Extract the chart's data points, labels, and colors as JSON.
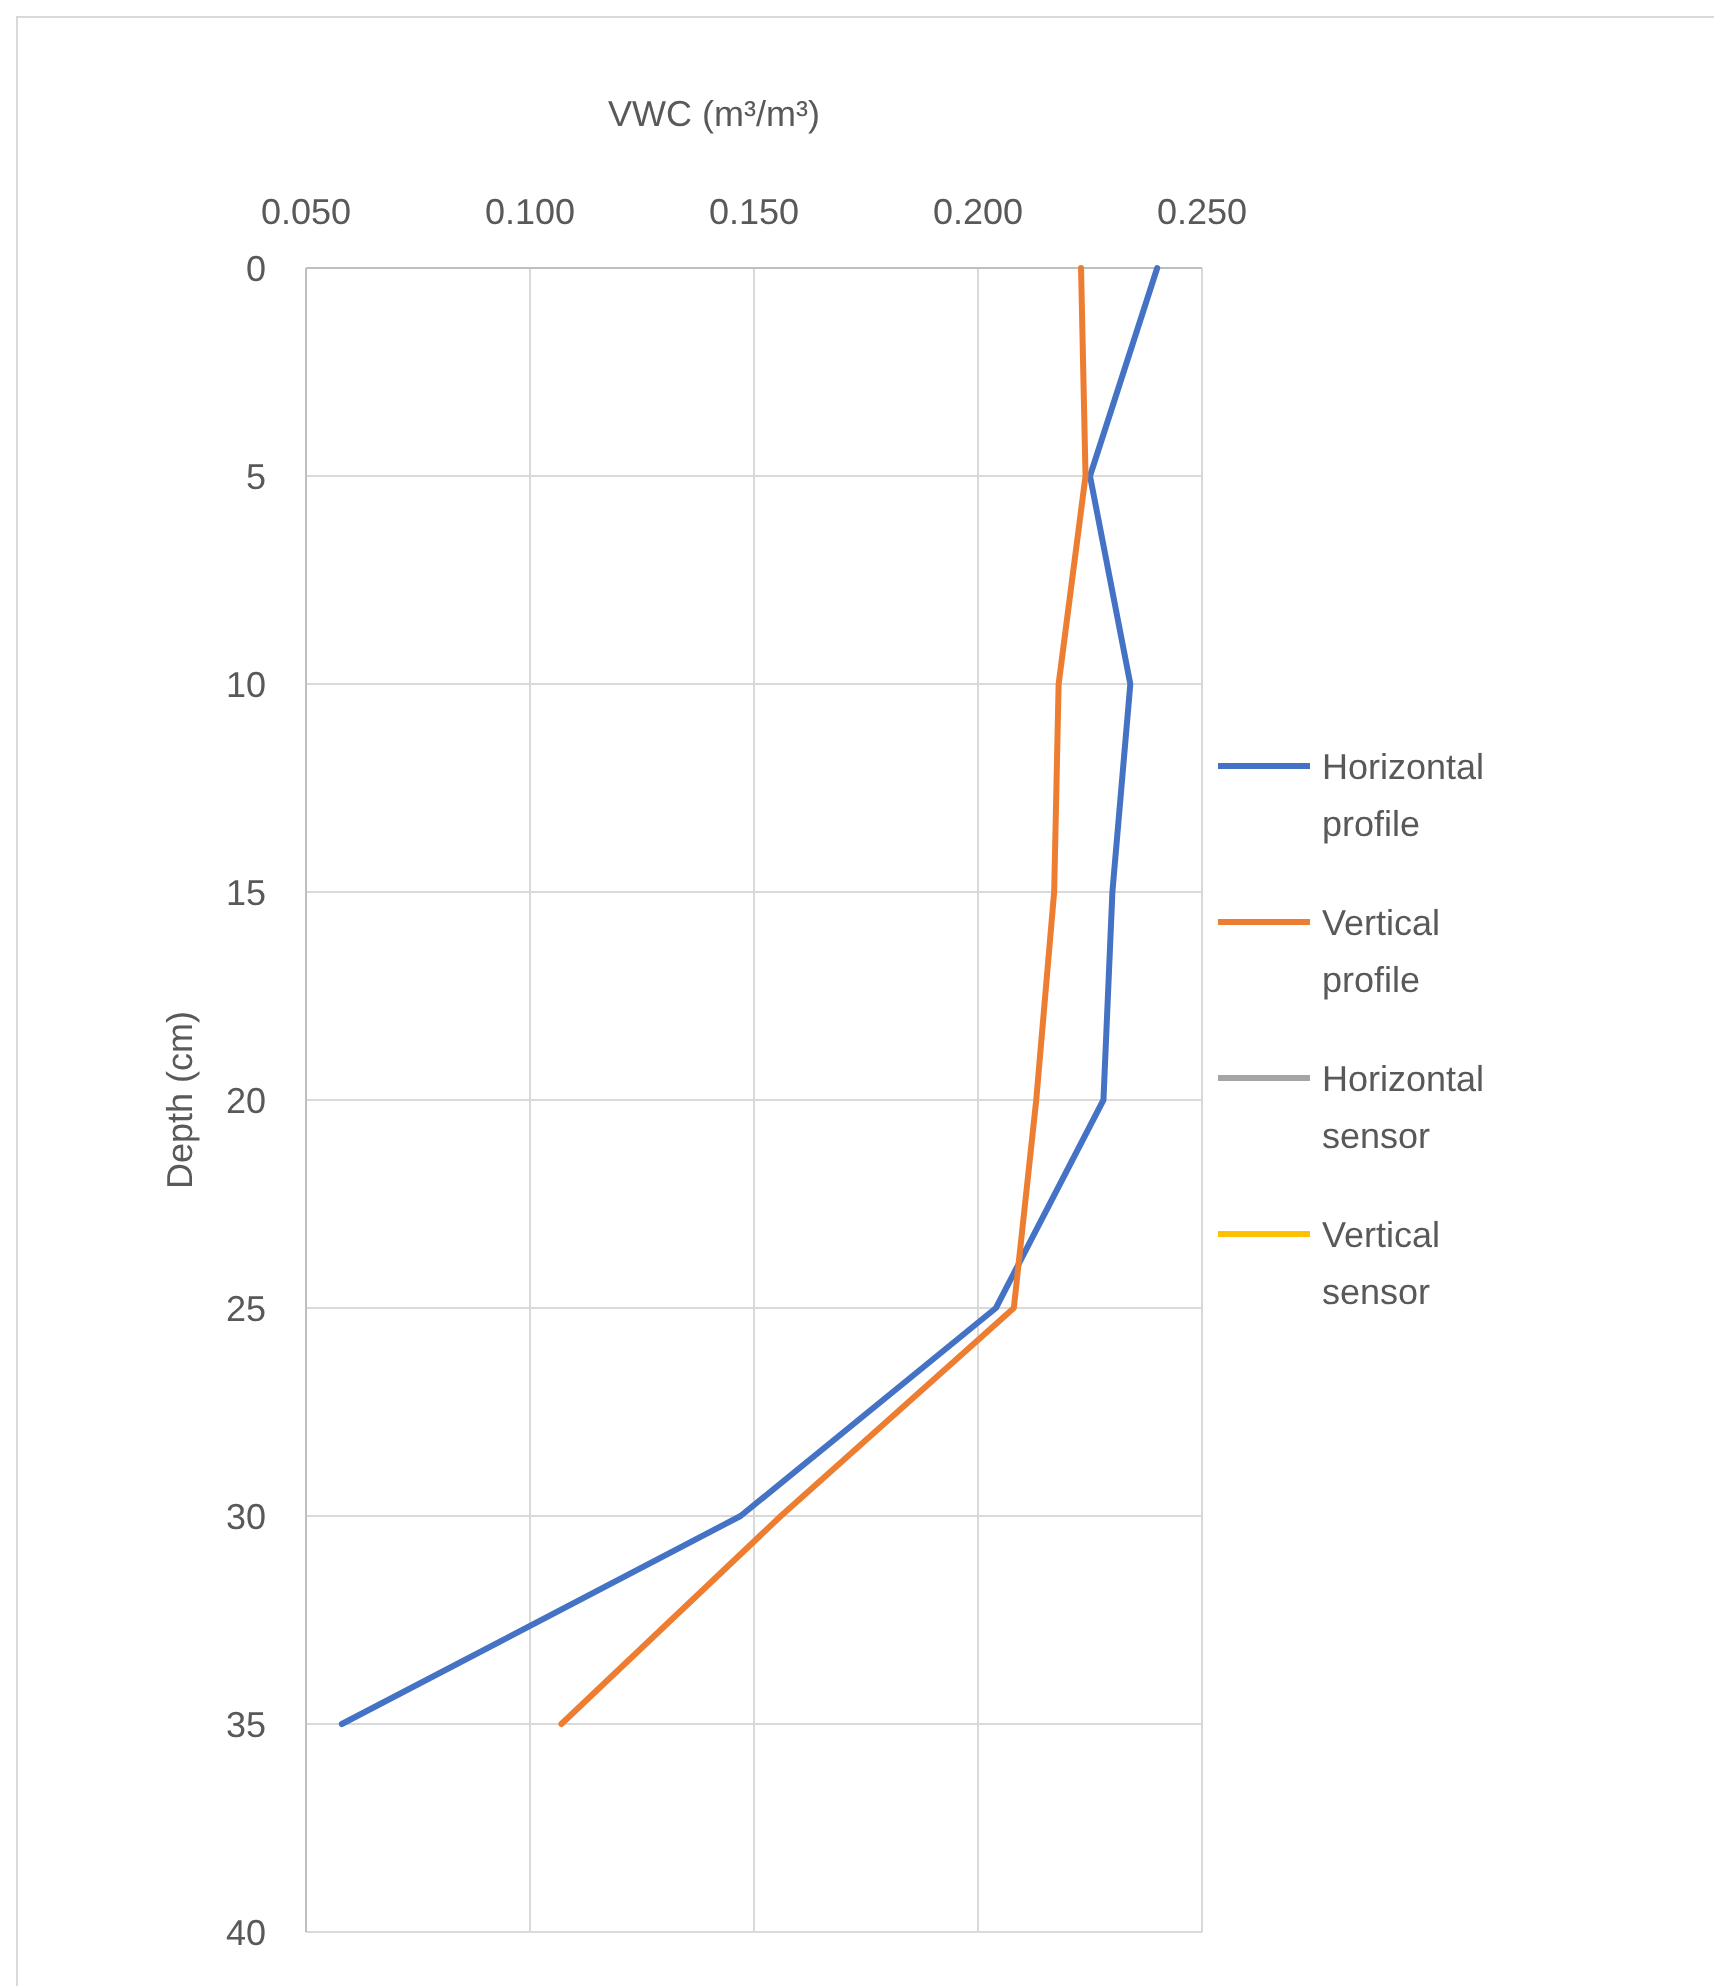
{
  "chart_data": {
    "type": "line",
    "xlabel": "VWC (m³/m³)",
    "ylabel": "Depth (cm)",
    "xlim": [
      0.05,
      0.25
    ],
    "xticks": [
      {
        "value": 0.05,
        "label": "0.050"
      },
      {
        "value": 0.1,
        "label": "0.100"
      },
      {
        "value": 0.15,
        "label": "0.150"
      },
      {
        "value": 0.2,
        "label": "0.200"
      },
      {
        "value": 0.25,
        "label": "0.250"
      }
    ],
    "ylim": [
      40,
      0
    ],
    "yticks": [
      0,
      5,
      10,
      15,
      20,
      25,
      30,
      35,
      40
    ],
    "grid": true,
    "legend": "right",
    "marker": "none",
    "series": [
      {
        "name": "Horizontal profile",
        "color": "#4472c4",
        "x": [
          0.24,
          0.225,
          0.234,
          0.23,
          0.228,
          0.204,
          0.147,
          0.058
        ],
        "values": [
          0,
          5,
          10,
          15,
          20,
          25,
          30,
          35
        ]
      },
      {
        "name": "Vertical profile",
        "color": "#ed7d31",
        "x": [
          0.223,
          0.224,
          0.218,
          0.217,
          0.213,
          0.208,
          0.156,
          0.107
        ],
        "values": [
          0,
          5,
          10,
          15,
          20,
          25,
          30,
          35
        ]
      },
      {
        "name": "Horizontal sensor",
        "color": "#a5a5a5"
      },
      {
        "name": "Vertical sensor",
        "color": "#ffc000"
      }
    ]
  }
}
